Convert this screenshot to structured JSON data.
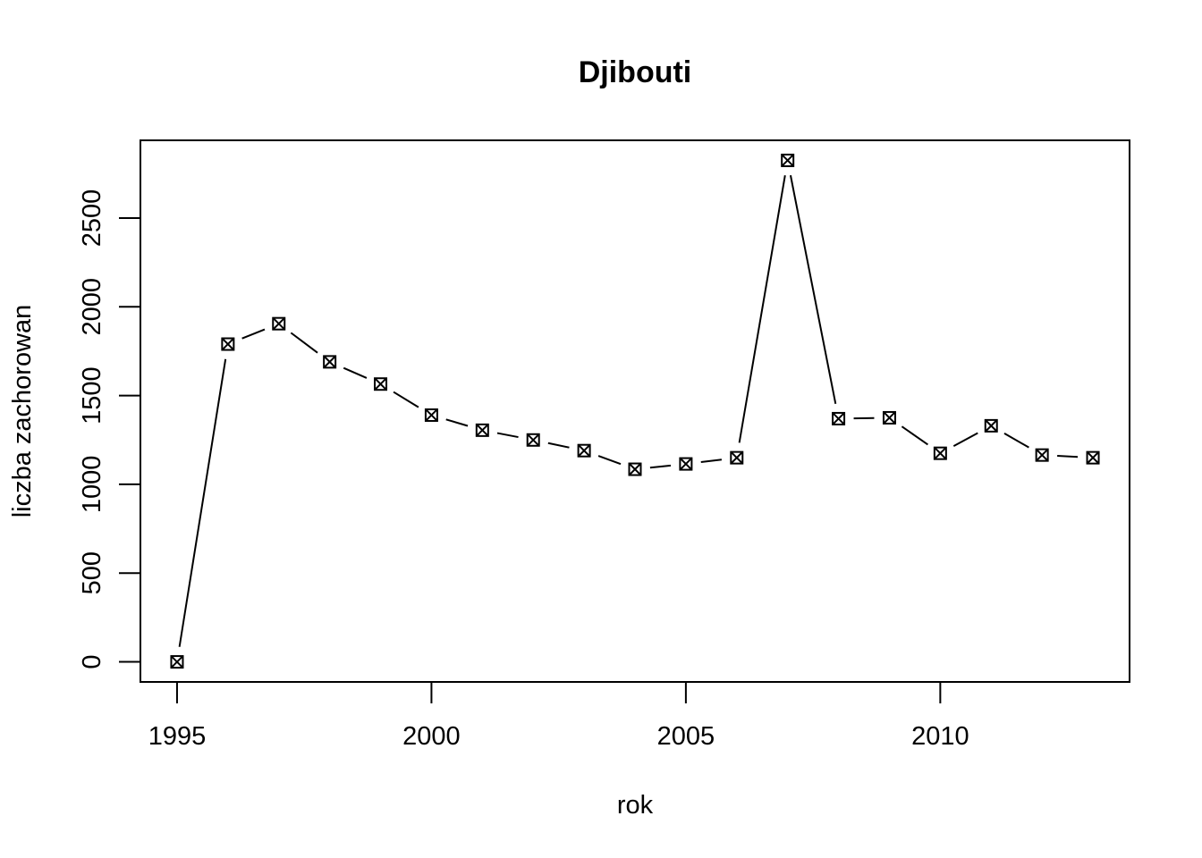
{
  "chart_data": {
    "type": "line",
    "title": "Djibouti",
    "xlabel": "rok",
    "ylabel": "liczba zachorowan",
    "x": [
      1995,
      1996,
      1997,
      1998,
      1999,
      2000,
      2001,
      2002,
      2003,
      2004,
      2005,
      2006,
      2007,
      2008,
      2009,
      2010,
      2011,
      2012,
      2013
    ],
    "series": [
      {
        "values": [
          0,
          1790,
          1905,
          1690,
          1565,
          1390,
          1305,
          1250,
          1190,
          1085,
          1115,
          1150,
          2825,
          1370,
          1375,
          1175,
          1330,
          1165,
          1150
        ]
      }
    ],
    "xlim": [
      1994.28,
      2013.72
    ],
    "ylim": [
      -113,
      2938
    ],
    "x_ticks": [
      "1995",
      "2000",
      "2005",
      "2010"
    ],
    "y_ticks": [
      "0",
      "500",
      "1000",
      "1500",
      "2000",
      "2500"
    ],
    "marker": "boxed-x",
    "grid": false
  }
}
